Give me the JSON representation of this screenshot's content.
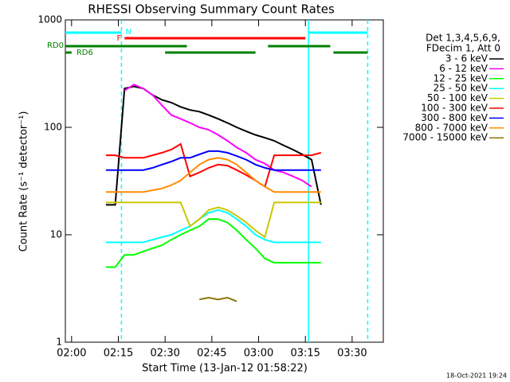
{
  "chart_data": {
    "type": "line",
    "title": "RHESSI Observing Summary Count Rates",
    "xlabel": "Start Time (13-Jan-12 01:58:22)",
    "ylabel": "Count Rate (s⁻¹ detector⁻¹)",
    "footer": "18-Oct-2021 19:24",
    "legend_header": [
      "Det 1,3,4,5,6,9,",
      "FDecim 1, Att 0"
    ],
    "log_y": true,
    "xlim": [
      "01:58",
      "03:40"
    ],
    "xticks": [
      "02:00",
      "02:15",
      "02:30",
      "02:45",
      "03:00",
      "03:15",
      "03:30"
    ],
    "ylim": [
      1,
      1000
    ],
    "yticks": [
      1,
      10,
      100,
      1000
    ],
    "x": [
      "02:11",
      "02:14",
      "02:17",
      "02:20",
      "02:23",
      "02:26",
      "02:29",
      "02:32",
      "02:35",
      "02:38",
      "02:41",
      "02:44",
      "02:47",
      "02:50",
      "02:53",
      "02:56",
      "02:59",
      "03:02",
      "03:05",
      "03:08",
      "03:11",
      "03:14",
      "03:17",
      "03:20"
    ],
    "series": [
      {
        "name": "3 - 6 keV",
        "color": "#000000",
        "values": [
          19,
          19,
          230,
          240,
          230,
          200,
          180,
          170,
          155,
          145,
          140,
          130,
          120,
          110,
          100,
          92,
          85,
          80,
          75,
          68,
          62,
          56,
          50,
          19
        ]
      },
      {
        "name": "6 - 12 keV",
        "color": "#ff00ff",
        "values": [
          null,
          null,
          220,
          250,
          230,
          200,
          160,
          130,
          120,
          110,
          100,
          95,
          85,
          75,
          65,
          58,
          50,
          46,
          40,
          38,
          35,
          32,
          28,
          null
        ]
      },
      {
        "name": "12 - 25 keV",
        "color": "#00ff00",
        "values": [
          5,
          5,
          6.5,
          6.5,
          7,
          7.5,
          8,
          9,
          10,
          11,
          12,
          14,
          14,
          13,
          11,
          9,
          7.5,
          6,
          5.5,
          5.5,
          5.5,
          5.5,
          5.5,
          5.5
        ]
      },
      {
        "name": "25 - 50 keV",
        "color": "#00ffff",
        "values": [
          8.5,
          8.5,
          8.5,
          8.5,
          8.5,
          9,
          9.5,
          10,
          11,
          12,
          14,
          16,
          17,
          16,
          14,
          12,
          10,
          9,
          8.5,
          8.5,
          8.5,
          8.5,
          8.5,
          8.5
        ]
      },
      {
        "name": "50 - 100 keV",
        "color": "#c8c800",
        "values": [
          20,
          20,
          20,
          20,
          20,
          20,
          20,
          20,
          20,
          12,
          14,
          17,
          18,
          17,
          15,
          13,
          11,
          9.5,
          20,
          20,
          20,
          20,
          20,
          20
        ]
      },
      {
        "name": "100 - 300 keV",
        "color": "#ff0000",
        "values": [
          55,
          55,
          52,
          52,
          52,
          55,
          58,
          62,
          70,
          35,
          38,
          42,
          45,
          44,
          40,
          36,
          32,
          28,
          55,
          55,
          55,
          55,
          55,
          58
        ]
      },
      {
        "name": "300 - 800 keV",
        "color": "#0000ff",
        "values": [
          40,
          40,
          40,
          40,
          40,
          42,
          45,
          48,
          52,
          52,
          56,
          60,
          60,
          58,
          54,
          50,
          45,
          42,
          40,
          40,
          40,
          40,
          40,
          40
        ]
      },
      {
        "name": "800 - 7000 keV",
        "color": "#ff8c00",
        "values": [
          25,
          25,
          25,
          25,
          25,
          26,
          27,
          29,
          32,
          38,
          45,
          50,
          52,
          50,
          45,
          38,
          32,
          28,
          25,
          25,
          25,
          25,
          25,
          25
        ]
      },
      {
        "name": "7000 - 15000 keV",
        "color": "#8b7500",
        "values": [
          null,
          null,
          null,
          null,
          null,
          null,
          null,
          null,
          null,
          null,
          2.5,
          2.6,
          2.5,
          2.6,
          2.4,
          null,
          null,
          null,
          null,
          null,
          null,
          null,
          null,
          null
        ]
      }
    ],
    "annotations": [
      {
        "label": "N",
        "color": "#00ffff",
        "segments": [
          [
            "01:58",
            "02:16"
          ],
          [
            "03:16",
            "03:35"
          ]
        ]
      },
      {
        "label": "F",
        "color": "#ff0000",
        "segments": [
          [
            "02:17",
            "03:15"
          ]
        ]
      },
      {
        "label": "RD0",
        "color": "#008000",
        "segments": [
          [
            "01:58",
            "02:37"
          ],
          [
            "03:03",
            "03:23"
          ]
        ]
      },
      {
        "label": "RD6",
        "color": "#008000",
        "segments": [
          [
            "01:58",
            "02:00"
          ],
          [
            "02:30",
            "02:59"
          ],
          [
            "03:24",
            "03:35"
          ]
        ]
      }
    ]
  }
}
